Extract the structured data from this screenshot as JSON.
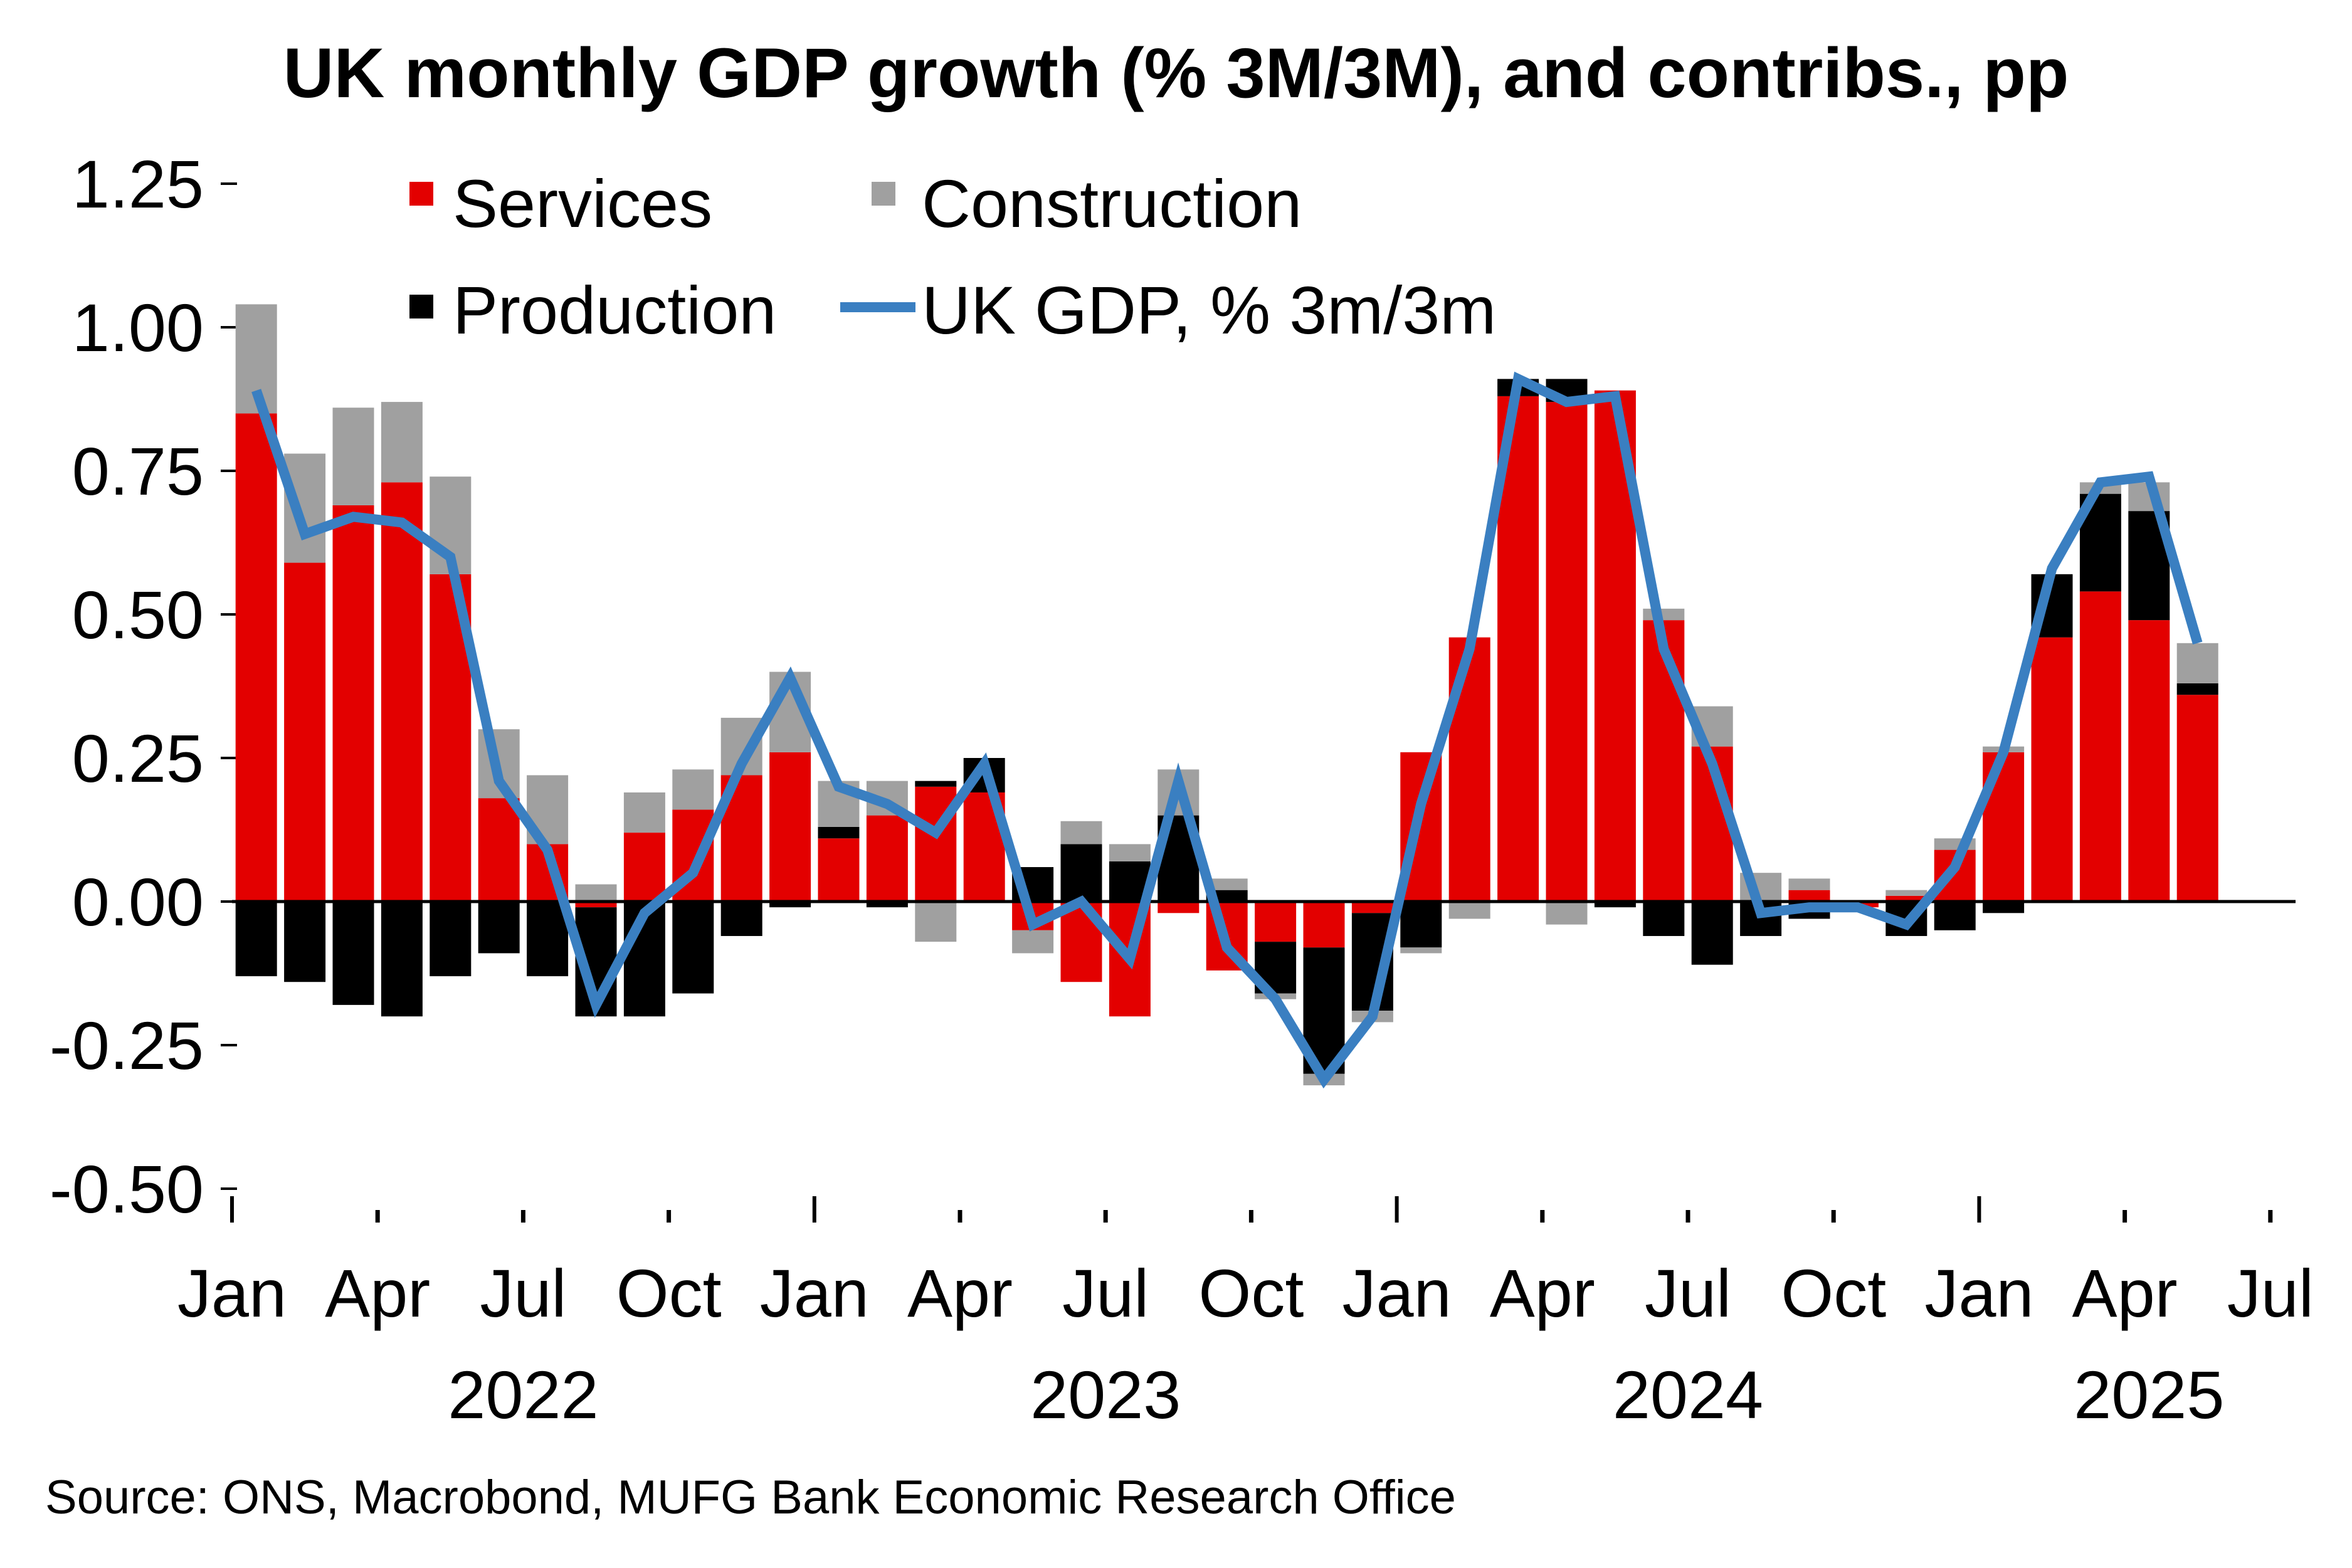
{
  "chart_data": {
    "type": "bar",
    "stacked": true,
    "title": "UK monthly GDP growth (% 3M/3M), and contribs., pp",
    "xlabel": "",
    "ylabel": "",
    "ylim": [
      -0.5,
      1.25
    ],
    "yticks": [
      "1.25",
      "1.00",
      "0.75",
      "0.50",
      "0.25",
      "0.00",
      "-0.25",
      "-0.50"
    ],
    "ytick_values": [
      1.25,
      1.0,
      0.75,
      0.5,
      0.25,
      0.0,
      -0.25,
      -0.5
    ],
    "grid": false,
    "legend": {
      "placement": "top-left",
      "entries": [
        {
          "name": "Services",
          "kind": "bar",
          "color": "#e30000"
        },
        {
          "name": "Construction",
          "kind": "bar",
          "color": "#a0a0a0"
        },
        {
          "name": "Production",
          "kind": "bar",
          "color": "#000000"
        },
        {
          "name": "UK GDP, % 3m/3m",
          "kind": "line",
          "color": "#3a7fc1"
        }
      ]
    },
    "x_month_labels": [
      "Jan",
      "Apr",
      "Jul",
      "Oct",
      "Jan",
      "Apr",
      "Jul",
      "Oct",
      "Jan",
      "Apr",
      "Jul",
      "Oct",
      "Jan",
      "Apr",
      "Jul"
    ],
    "x_year_labels": [
      "2022",
      "2023",
      "2024",
      "2025"
    ],
    "categories": [
      "Jan 2022",
      "Feb 2022",
      "Mar 2022",
      "Apr 2022",
      "May 2022",
      "Jun 2022",
      "Jul 2022",
      "Aug 2022",
      "Sep 2022",
      "Oct 2022",
      "Nov 2022",
      "Dec 2022",
      "Jan 2023",
      "Feb 2023",
      "Mar 2023",
      "Apr 2023",
      "May 2023",
      "Jun 2023",
      "Jul 2023",
      "Aug 2023",
      "Sep 2023",
      "Oct 2023",
      "Nov 2023",
      "Dec 2023",
      "Jan 2024",
      "Feb 2024",
      "Mar 2024",
      "Apr 2024",
      "May 2024",
      "Jun 2024",
      "Jul 2024",
      "Aug 2024",
      "Sep 2024",
      "Oct 2024",
      "Nov 2024",
      "Dec 2024",
      "Jan 2025",
      "Feb 2025",
      "Mar 2025",
      "Apr 2025",
      "May 2025"
    ],
    "series": [
      {
        "name": "Services",
        "type": "bar",
        "color": "#e30000",
        "values": [
          0.85,
          0.59,
          0.69,
          0.73,
          0.57,
          0.18,
          0.1,
          -0.01,
          0.12,
          0.16,
          0.22,
          0.26,
          0.11,
          0.15,
          0.2,
          0.19,
          -0.05,
          -0.14,
          -0.2,
          -0.02,
          -0.12,
          -0.07,
          -0.08,
          -0.02,
          0.26,
          0.46,
          0.88,
          0.87,
          0.89,
          0.49,
          0.27,
          0.0,
          0.02,
          -0.01,
          0.01,
          0.09,
          0.26,
          0.46,
          0.54,
          0.49,
          0.36
        ]
      },
      {
        "name": "Production",
        "type": "bar",
        "color": "#000000",
        "values": [
          -0.13,
          -0.14,
          -0.18,
          -0.2,
          -0.13,
          -0.09,
          -0.13,
          -0.19,
          -0.2,
          -0.16,
          -0.06,
          -0.01,
          0.02,
          -0.01,
          0.01,
          0.06,
          0.06,
          0.1,
          0.07,
          0.15,
          0.02,
          -0.09,
          -0.22,
          -0.17,
          -0.08,
          0.0,
          0.03,
          0.04,
          -0.01,
          -0.06,
          -0.11,
          -0.06,
          -0.03,
          0.0,
          -0.06,
          -0.05,
          -0.02,
          0.11,
          0.17,
          0.19,
          0.02
        ]
      },
      {
        "name": "Construction",
        "type": "bar",
        "color": "#a0a0a0",
        "values": [
          0.19,
          0.19,
          0.17,
          0.14,
          0.17,
          0.12,
          0.12,
          0.03,
          0.07,
          0.07,
          0.1,
          0.14,
          0.08,
          0.06,
          -0.07,
          0.0,
          -0.04,
          0.04,
          0.03,
          0.08,
          0.02,
          -0.01,
          -0.02,
          -0.02,
          -0.01,
          -0.03,
          0.0,
          -0.04,
          0.0,
          0.02,
          0.07,
          0.05,
          0.02,
          0.0,
          0.01,
          0.02,
          0.01,
          0.0,
          0.02,
          0.05,
          0.07
        ]
      },
      {
        "name": "UK GDP, % 3m/3m",
        "type": "line",
        "color": "#3a7fc1",
        "values": [
          0.89,
          0.64,
          0.67,
          0.66,
          0.6,
          0.21,
          0.09,
          -0.18,
          -0.02,
          0.05,
          0.24,
          0.39,
          0.2,
          0.17,
          0.12,
          0.24,
          -0.04,
          0.0,
          -0.1,
          0.21,
          -0.08,
          -0.17,
          -0.31,
          -0.2,
          0.17,
          0.44,
          0.91,
          0.87,
          0.88,
          0.44,
          0.24,
          -0.02,
          -0.01,
          -0.01,
          -0.04,
          0.06,
          0.26,
          0.58,
          0.73,
          0.74,
          0.45
        ]
      }
    ]
  },
  "source": "Source: ONS, Macrobond, MUFG Bank Economic Research Office"
}
